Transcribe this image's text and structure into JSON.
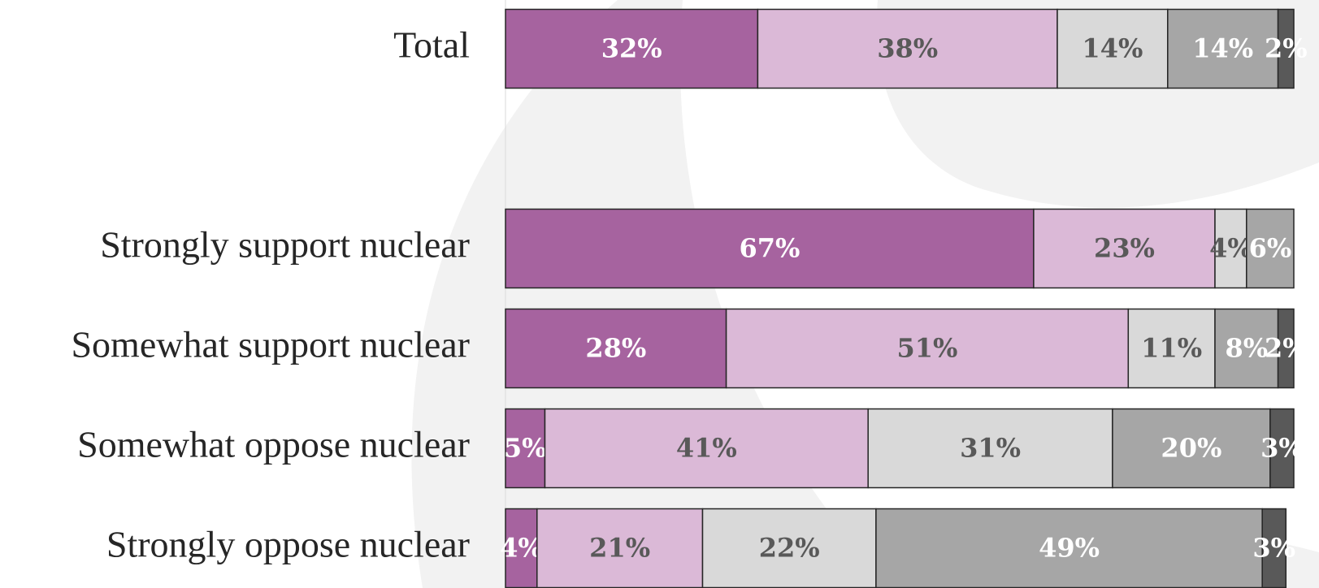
{
  "chart_data": {
    "type": "stacked-bar-horizontal",
    "categories": [
      "Total",
      null,
      "Strongly support nuclear",
      "Somewhat support nuclear",
      "Somewhat oppose nuclear",
      "Strongly oppose nuclear"
    ],
    "xlim": [
      0,
      100
    ],
    "series": [
      {
        "color": "#a6639f",
        "label_color": "#ffffff",
        "values": [
          32,
          null,
          67,
          28,
          5,
          4
        ],
        "value_labels": [
          "32%",
          null,
          "67%",
          "28%",
          "5%",
          "4%"
        ]
      },
      {
        "color": "#dbb9d7",
        "label_color": "#595959",
        "values": [
          38,
          null,
          23,
          51,
          41,
          21
        ],
        "value_labels": [
          "38%",
          null,
          "23%",
          "51%",
          "41%",
          "21%"
        ]
      },
      {
        "color": "#d9d9d9",
        "label_color": "#595959",
        "values": [
          14,
          null,
          4,
          11,
          31,
          22
        ],
        "value_labels": [
          "14%",
          null,
          "4%",
          "11%",
          "31%",
          "22%"
        ]
      },
      {
        "color": "#a6a6a6",
        "label_color": "#ffffff",
        "values": [
          14,
          null,
          6,
          8,
          20,
          49
        ],
        "value_labels": [
          "14%",
          null,
          "6%",
          "8%",
          "20%",
          "49%"
        ]
      },
      {
        "color": "#595959",
        "label_color": "#ffffff",
        "values": [
          2,
          null,
          0,
          2,
          3,
          3
        ],
        "value_labels": [
          "2%",
          null,
          null,
          "2%",
          "3%",
          "3%"
        ]
      }
    ]
  }
}
